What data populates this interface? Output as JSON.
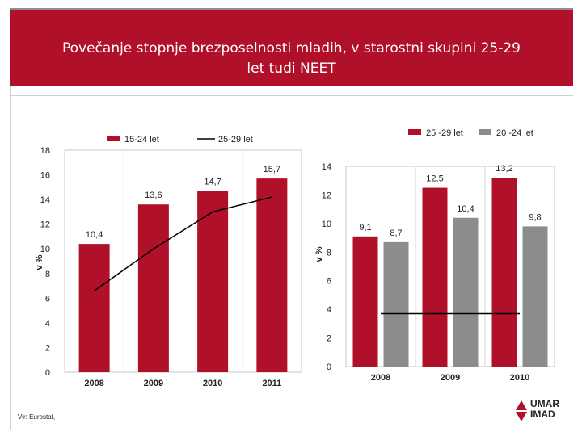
{
  "title": "Povečanje stopnje brezposelnosti mladih, v starostni skupini 25-29\nlet tudi NEET",
  "source": "Vir: Eurostat,",
  "logo": {
    "line1": "UMAR",
    "line2": "IMAD"
  },
  "colors": {
    "brand": "#b1102a",
    "bar_red": "#b1102a",
    "bar_grey": "#8c8c8c",
    "line": "#000000"
  },
  "chart_data": [
    {
      "type": "bar",
      "categories": [
        "2008",
        "2009",
        "2010",
        "2011"
      ],
      "series": [
        {
          "name": "15-24 let",
          "kind": "bar",
          "values": [
            10.4,
            13.6,
            14.7,
            15.7
          ],
          "labels": [
            "10,4",
            "13,6",
            "14,7",
            "15,7"
          ]
        },
        {
          "name": "25-29 let",
          "kind": "line",
          "values": [
            6.6,
            10.0,
            13.0,
            14.2
          ]
        }
      ],
      "ylabel": "v %",
      "ylim": [
        0,
        18
      ],
      "yticks": [
        "0",
        "2",
        "4",
        "6",
        "8",
        "10",
        "12",
        "14",
        "16",
        "18"
      ],
      "grid": "vertical category separators",
      "legend": "top"
    },
    {
      "type": "bar",
      "categories": [
        "2008",
        "2009",
        "2010"
      ],
      "series": [
        {
          "name": "25 -29 let",
          "kind": "bar",
          "values": [
            9.1,
            12.5,
            13.2
          ],
          "labels": [
            "9,1",
            "12,5",
            "13,2"
          ]
        },
        {
          "name": "20 -24 let",
          "kind": "bar",
          "values": [
            8.7,
            10.4,
            9.8
          ],
          "labels": [
            "8,7",
            "10,4",
            "9,8"
          ]
        },
        {
          "kind": "line",
          "values": [
            3.7,
            3.7,
            3.7
          ]
        }
      ],
      "ylabel": "v %",
      "ylim": [
        0,
        14
      ],
      "yticks": [
        "0",
        "2",
        "4",
        "6",
        "8",
        "10",
        "12",
        "14"
      ],
      "grid": "vertical category separators",
      "legend": "top-right"
    }
  ]
}
